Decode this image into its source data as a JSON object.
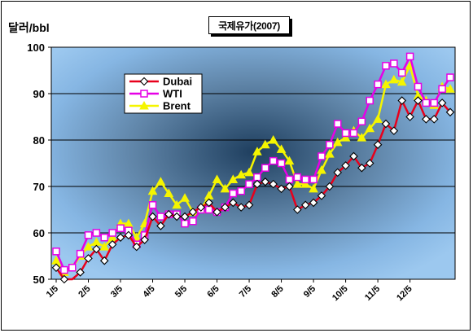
{
  "chart_data": {
    "type": "line",
    "title": "국제유가(2007)",
    "ylabel": "달러/bbl",
    "ylim": [
      50,
      100
    ],
    "yticks": [
      50,
      60,
      70,
      80,
      90,
      100
    ],
    "grid": true,
    "legend_position": "upper-left",
    "xtick_labels": [
      "1/5",
      "2/5",
      "3/5",
      "4/5",
      "5/5",
      "6/5",
      "7/5",
      "8/5",
      "9/5",
      "10/5",
      "11/5",
      "12/5"
    ],
    "xtick_positions": [
      0,
      4,
      8,
      12,
      16,
      20,
      24,
      28,
      32,
      36,
      40,
      44
    ],
    "x": [
      0,
      1,
      2,
      3,
      4,
      5,
      6,
      7,
      8,
      9,
      10,
      11,
      12,
      13,
      14,
      15,
      16,
      17,
      18,
      19,
      20,
      21,
      22,
      23,
      24,
      25,
      26,
      27,
      28,
      29,
      30,
      31,
      32,
      33,
      34,
      35,
      36,
      37,
      38,
      39,
      40,
      41,
      42,
      43,
      44,
      45,
      46,
      47,
      48,
      49
    ],
    "series": [
      {
        "name": "Dubai",
        "color": "#e8001c",
        "marker": "diamond",
        "values": [
          52.5,
          50,
          49.5,
          51.5,
          54.5,
          56.5,
          54,
          57.5,
          59,
          59.5,
          57,
          58.5,
          63.5,
          61.5,
          64,
          63.5,
          63.5,
          64.5,
          65.5,
          66.5,
          64.5,
          65.5,
          66.5,
          65.5,
          66,
          70.5,
          71,
          70.5,
          69.5,
          70,
          65,
          66,
          66.5,
          68,
          70,
          73,
          74.5,
          76.5,
          74,
          75,
          79,
          83.5,
          82,
          88.5,
          85,
          88.5,
          84.5,
          84.5,
          88,
          86
        ]
      },
      {
        "name": "WTI",
        "color": "#e600e6",
        "marker": "square",
        "values": [
          56,
          52,
          52.5,
          55.5,
          59.5,
          60,
          59,
          60,
          61,
          60.5,
          57.5,
          59.5,
          66,
          63.5,
          64,
          64,
          62,
          62.5,
          65,
          65,
          64.5,
          65.5,
          68.5,
          69,
          70.5,
          72,
          74,
          75.5,
          75,
          71.5,
          72,
          71.5,
          71.5,
          76.5,
          79,
          83.5,
          81.5,
          81.5,
          84,
          88.5,
          92,
          96,
          96.5,
          94.5,
          98,
          91.5,
          88,
          88,
          91,
          93.5
        ]
      },
      {
        "name": "Brent",
        "color": "#f5f500",
        "marker": "triangle",
        "values": [
          54,
          51.5,
          52.5,
          55,
          57,
          58,
          57,
          59,
          62,
          62,
          59,
          62,
          69,
          71,
          68.5,
          66,
          67.5,
          64.5,
          65,
          68,
          71.5,
          69.5,
          71.5,
          72.5,
          73,
          77.5,
          79,
          80,
          78,
          75.5,
          70.5,
          70.5,
          69.5,
          73.5,
          77,
          79.5,
          80.5,
          82,
          80.5,
          82.5,
          84.5,
          92,
          93,
          92.5,
          96,
          89.5,
          88.5,
          87.5,
          91.5,
          91
        ]
      }
    ]
  }
}
